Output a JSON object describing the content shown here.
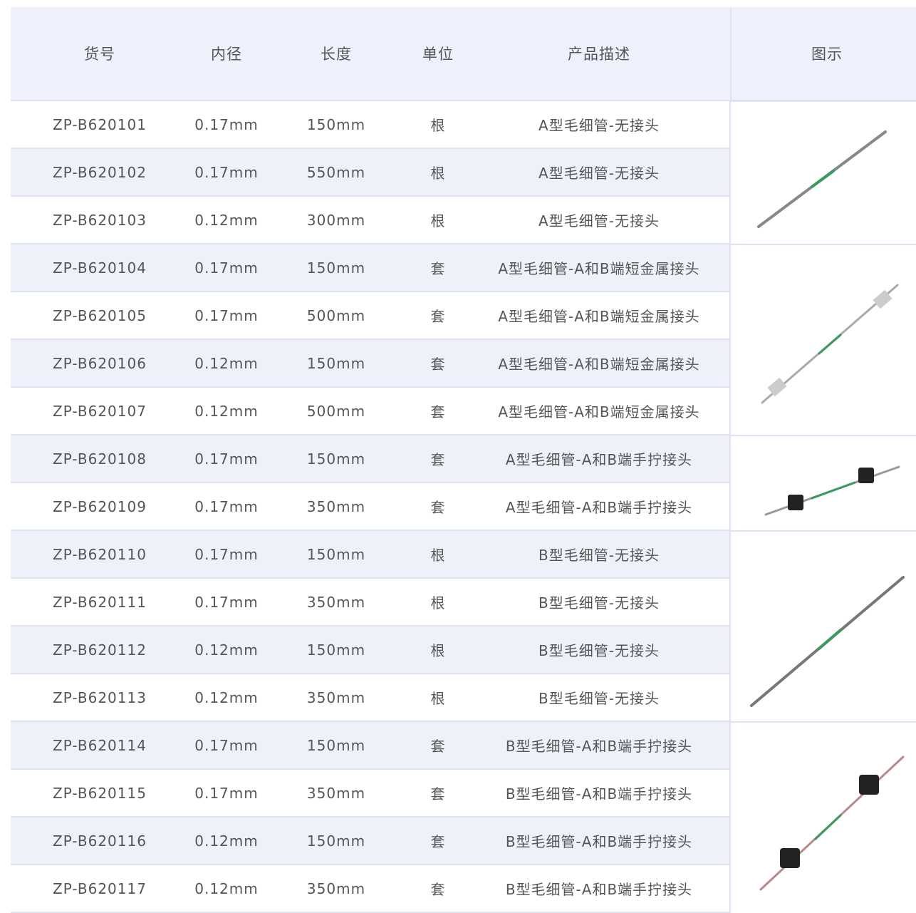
{
  "table": {
    "headers": [
      "货号",
      "内径",
      "长度",
      "单位",
      "产品描述",
      "图示"
    ],
    "rows": [
      [
        "ZP-B620101",
        "0.17mm",
        "150mm",
        "根",
        "A型毛细管-无接头"
      ],
      [
        "ZP-B620102",
        "0.17mm",
        "550mm",
        "根",
        "A型毛细管-无接头"
      ],
      [
        "ZP-B620103",
        "0.12mm",
        "300mm",
        "根",
        "A型毛细管-无接头"
      ],
      [
        "ZP-B620104",
        "0.17mm",
        "150mm",
        "套",
        "A型毛细管-A和B端短金属接头"
      ],
      [
        "ZP-B620105",
        "0.17mm",
        "500mm",
        "套",
        "A型毛细管-A和B端短金属接头"
      ],
      [
        "ZP-B620106",
        "0.12mm",
        "150mm",
        "套",
        "A型毛细管-A和B端短金属接头"
      ],
      [
        "ZP-B620107",
        "0.12mm",
        "500mm",
        "套",
        "A型毛细管-A和B端短金属接头"
      ],
      [
        "ZP-B620108",
        "0.17mm",
        "150mm",
        "套",
        "A型毛细管-A和B端手拧接头"
      ],
      [
        "ZP-B620109",
        "0.17mm",
        "350mm",
        "套",
        "A型毛细管-A和B端手拧接头"
      ],
      [
        "ZP-B620110",
        "0.17mm",
        "150mm",
        "根",
        "B型毛细管-无接头"
      ],
      [
        "ZP-B620111",
        "0.17mm",
        "350mm",
        "根",
        "B型毛细管-无接头"
      ],
      [
        "ZP-B620112",
        "0.12mm",
        "150mm",
        "根",
        "B型毛细管-无接头"
      ],
      [
        "ZP-B620113",
        "0.12mm",
        "350mm",
        "根",
        "B型毛细管-无接头"
      ],
      [
        "ZP-B620114",
        "0.17mm",
        "150mm",
        "套",
        "B型毛细管-A和B端手拧接头"
      ],
      [
        "ZP-B620115",
        "0.17mm",
        "350mm",
        "套",
        "B型毛细管-A和B端手拧接头"
      ],
      [
        "ZP-B620116",
        "0.12mm",
        "150mm",
        "套",
        "B型毛细管-A和B端手拧接头"
      ],
      [
        "ZP-B620117",
        "0.12mm",
        "350mm",
        "套",
        "B型毛细管-A和B端手拧接头"
      ]
    ]
  }
}
